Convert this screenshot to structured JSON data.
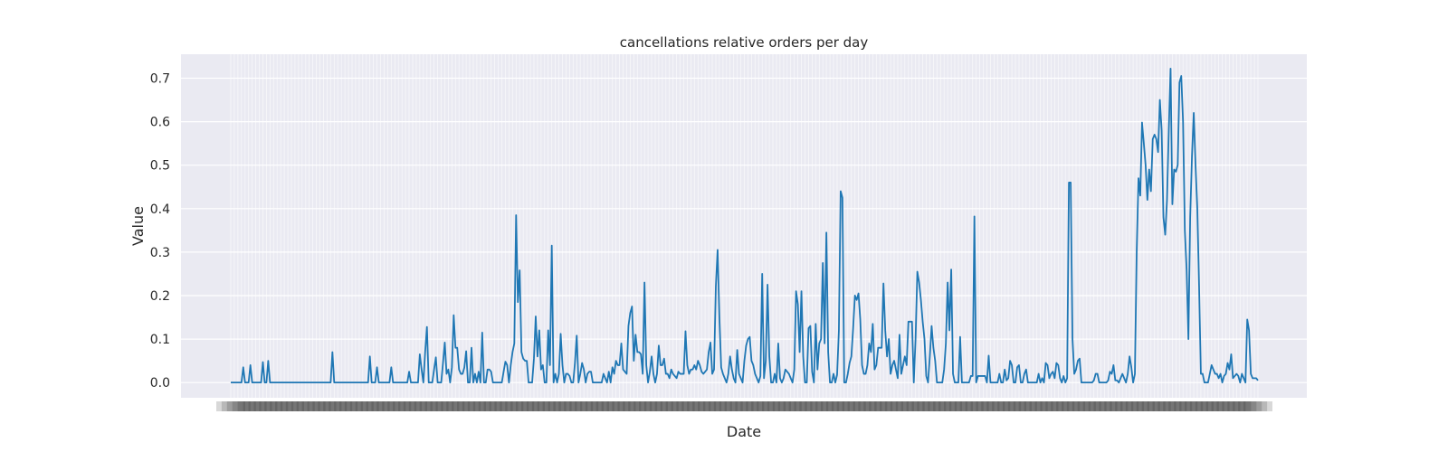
{
  "chart_data": {
    "type": "line",
    "title": "cancellations relative orders per day",
    "xlabel": "Date",
    "ylabel": "Value",
    "ylim": [
      -0.035,
      0.755
    ],
    "yticks": [
      0.0,
      0.1,
      0.2,
      0.3,
      0.4,
      0.5,
      0.6,
      0.7
    ],
    "ytick_labels": [
      "0.0",
      "0.1",
      "0.2",
      "0.3",
      "0.4",
      "0.5",
      "0.6",
      "0.7"
    ],
    "grid": true,
    "x_tick_labels_note": "dense overlapping date labels (illegible)",
    "series": [
      {
        "color": "#1f77b4",
        "values": [
          0,
          0,
          0,
          0,
          0,
          0,
          0,
          0.035,
          0,
          0,
          0,
          0.04,
          0,
          0,
          0,
          0,
          0,
          0,
          0.047,
          0,
          0,
          0.05,
          0,
          0,
          0,
          0,
          0,
          0,
          0,
          0,
          0,
          0,
          0,
          0,
          0,
          0,
          0,
          0,
          0,
          0,
          0,
          0,
          0,
          0,
          0,
          0,
          0,
          0,
          0,
          0,
          0,
          0,
          0,
          0,
          0,
          0,
          0,
          0.07,
          0,
          0,
          0,
          0,
          0,
          0,
          0,
          0,
          0,
          0,
          0,
          0,
          0,
          0,
          0,
          0,
          0,
          0,
          0,
          0,
          0.06,
          0,
          0,
          0,
          0.035,
          0,
          0,
          0,
          0,
          0,
          0,
          0,
          0.035,
          0,
          0,
          0,
          0,
          0,
          0,
          0,
          0,
          0,
          0.025,
          0,
          0,
          0,
          0,
          0,
          0.065,
          0.03,
          0,
          0.07,
          0.128,
          0,
          0,
          0,
          0.03,
          0.058,
          0,
          0,
          0,
          0.045,
          0.092,
          0.02,
          0.03,
          0,
          0.035,
          0.155,
          0.08,
          0.08,
          0.03,
          0.02,
          0.02,
          0.035,
          0.072,
          0,
          0,
          0.08,
          0,
          0.02,
          0,
          0.025,
          0,
          0.115,
          0,
          0,
          0.03,
          0.03,
          0.025,
          0,
          0,
          0,
          0,
          0,
          0,
          0.025,
          0.048,
          0.04,
          0,
          0.04,
          0.07,
          0.09,
          0.385,
          0.185,
          0.258,
          0.07,
          0.055,
          0.05,
          0.05,
          0,
          0,
          0,
          0.055,
          0.152,
          0.06,
          0.12,
          0.03,
          0.04,
          0,
          0,
          0.12,
          0.04,
          0.315,
          0,
          0.02,
          0,
          0.02,
          0.112,
          0.04,
          0,
          0.02,
          0.02,
          0.015,
          0,
          0,
          0.045,
          0.108,
          0,
          0.02,
          0.045,
          0.03,
          0,
          0.02,
          0.025,
          0.025,
          0,
          0,
          0,
          0,
          0,
          0,
          0.02,
          0.01,
          0,
          0.025,
          0,
          0.035,
          0.02,
          0.05,
          0.04,
          0.04,
          0.09,
          0.03,
          0.025,
          0.02,
          0.13,
          0.16,
          0.175,
          0.05,
          0.11,
          0.07,
          0.07,
          0.065,
          0.02,
          0.23,
          0.04,
          0,
          0.025,
          0.06,
          0.02,
          0,
          0.02,
          0.085,
          0.04,
          0.04,
          0.055,
          0.02,
          0.02,
          0.01,
          0.03,
          0.02,
          0.015,
          0.01,
          0.025,
          0.02,
          0.02,
          0.02,
          0.118,
          0.04,
          0.02,
          0.03,
          0.03,
          0.04,
          0.03,
          0.05,
          0.04,
          0.025,
          0.02,
          0.025,
          0.03,
          0.07,
          0.092,
          0.02,
          0.03,
          0.22,
          0.305,
          0.15,
          0.035,
          0.02,
          0.01,
          0,
          0.02,
          0.06,
          0.03,
          0.01,
          0,
          0.075,
          0.02,
          0.01,
          0,
          0.05,
          0.085,
          0.1,
          0.105,
          0.05,
          0.04,
          0.02,
          0.01,
          0,
          0.015,
          0.25,
          0.01,
          0.05,
          0.225,
          0.06,
          0,
          0,
          0.02,
          0,
          0.09,
          0.01,
          0,
          0.01,
          0.03,
          0.025,
          0.02,
          0.01,
          0,
          0.03,
          0.21,
          0.18,
          0.07,
          0.21,
          0.06,
          0,
          0,
          0.125,
          0.13,
          0.025,
          0,
          0.135,
          0.03,
          0.09,
          0.1,
          0.275,
          0.09,
          0.345,
          0.07,
          0,
          0,
          0.02,
          0,
          0.018,
          0.12,
          0.44,
          0.425,
          0,
          0,
          0.02,
          0.045,
          0.06,
          0.125,
          0.2,
          0.19,
          0.205,
          0.145,
          0.04,
          0.02,
          0.02,
          0.04,
          0.09,
          0.07,
          0.135,
          0.03,
          0.04,
          0.08,
          0.08,
          0.08,
          0.228,
          0.12,
          0.06,
          0.1,
          0.02,
          0.04,
          0.05,
          0.03,
          0.01,
          0.11,
          0.02,
          0.04,
          0.06,
          0.04,
          0.14,
          0.14,
          0.14,
          0,
          0.1,
          0.255,
          0.23,
          0.19,
          0.14,
          0.1,
          0.015,
          0,
          0.06,
          0.13,
          0.08,
          0.05,
          0,
          0,
          0,
          0,
          0.03,
          0.09,
          0.23,
          0.12,
          0.26,
          0.02,
          0,
          0,
          0,
          0.105,
          0,
          0,
          0,
          0,
          0,
          0.015,
          0.015,
          0.382,
          0,
          0.015,
          0.015,
          0.015,
          0.015,
          0.015,
          0,
          0.062,
          0,
          0,
          0,
          0,
          0,
          0.02,
          0,
          0,
          0.03,
          0.005,
          0.01,
          0.05,
          0.04,
          0,
          0,
          0.035,
          0.04,
          0,
          0,
          0.02,
          0.03,
          0,
          0,
          0,
          0,
          0,
          0,
          0.02,
          0,
          0.01,
          0,
          0.045,
          0.04,
          0.01,
          0.02,
          0.025,
          0.01,
          0.045,
          0.04,
          0.01,
          0,
          0.015,
          0,
          0.01,
          0.46,
          0.46,
          0.1,
          0.02,
          0.03,
          0.05,
          0.055,
          0,
          0,
          0,
          0,
          0,
          0,
          0,
          0.005,
          0.02,
          0.02,
          0,
          0,
          0,
          0,
          0,
          0.005,
          0.025,
          0.02,
          0.04,
          0.005,
          0.005,
          0,
          0.01,
          0.02,
          0.01,
          0,
          0.02,
          0.06,
          0.035,
          0,
          0.02,
          0.3,
          0.47,
          0.43,
          0.598,
          0.55,
          0.5,
          0.42,
          0.49,
          0.44,
          0.56,
          0.57,
          0.56,
          0.53,
          0.65,
          0.58,
          0.38,
          0.34,
          0.42,
          0.58,
          0.722,
          0.41,
          0.49,
          0.485,
          0.5,
          0.69,
          0.705,
          0.6,
          0.35,
          0.26,
          0.1,
          0.38,
          0.52,
          0.62,
          0.5,
          0.4,
          0.22,
          0.02,
          0.02,
          0,
          0,
          0,
          0.02,
          0.04,
          0.03,
          0.02,
          0.02,
          0.01,
          0.02,
          0,
          0.015,
          0.02,
          0.045,
          0.03,
          0.065,
          0.01,
          0.015,
          0.02,
          0.015,
          0,
          0.02,
          0.01,
          0,
          0.145,
          0.12,
          0.02,
          0.01,
          0.01,
          0.01,
          0.005
        ]
      }
    ]
  }
}
